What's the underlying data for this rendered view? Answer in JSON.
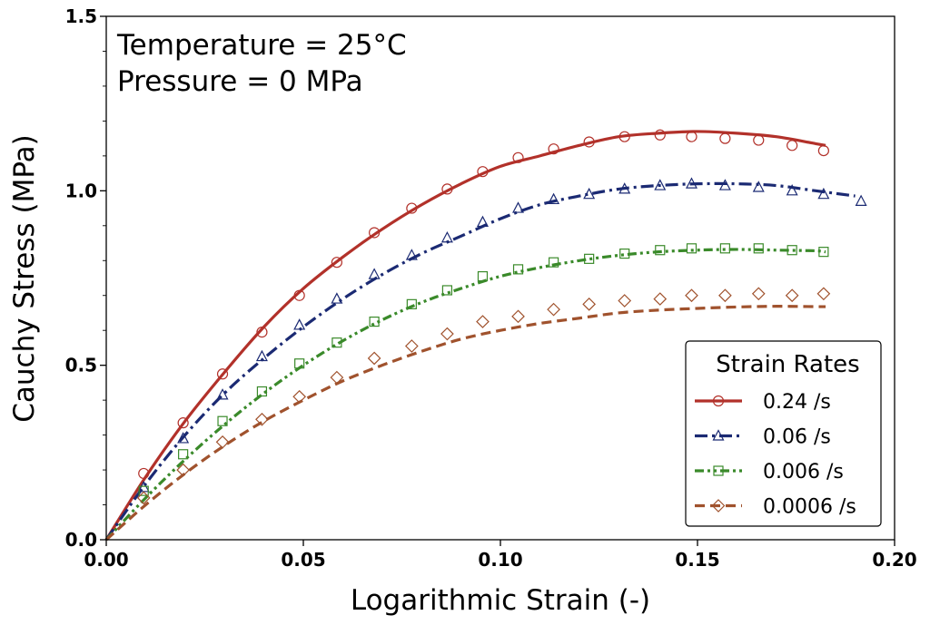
{
  "chart_data": {
    "type": "line",
    "xlabel": "Logarithmic Strain (-)",
    "ylabel": "Cauchy Stress (MPa)",
    "xlim": [
      0,
      0.2
    ],
    "ylim": [
      0,
      1.5
    ],
    "x_ticks": [
      "0.00",
      "0.05",
      "0.10",
      "0.15",
      "0.20"
    ],
    "y_ticks": [
      "0.0",
      "0.5",
      "1.0",
      "1.5"
    ],
    "grid": false,
    "annotations": [
      "Temperature = 25°C",
      "Pressure = 0 MPa"
    ],
    "legend": {
      "title": "Strain Rates",
      "position": "lower-right"
    },
    "series": [
      {
        "name": "0.24 /s",
        "color": "#b2312a",
        "line_style": "solid",
        "marker": "circle",
        "model_x": [
          0,
          0.01,
          0.02,
          0.03,
          0.04,
          0.05,
          0.06,
          0.07,
          0.08,
          0.09,
          0.1,
          0.11,
          0.12,
          0.13,
          0.14,
          0.15,
          0.16,
          0.17,
          0.18,
          0.1825
        ],
        "model_y": [
          0,
          0.18,
          0.34,
          0.48,
          0.61,
          0.72,
          0.81,
          0.89,
          0.96,
          1.02,
          1.07,
          1.1,
          1.13,
          1.155,
          1.165,
          1.17,
          1.165,
          1.155,
          1.135,
          1.13
        ],
        "data_x": [
          0.0095,
          0.0195,
          0.0295,
          0.0395,
          0.049,
          0.0585,
          0.068,
          0.0775,
          0.0865,
          0.0955,
          0.1045,
          0.1135,
          0.1225,
          0.1315,
          0.1405,
          0.1485,
          0.157,
          0.1655,
          0.174,
          0.182
        ],
        "data_y": [
          0.19,
          0.335,
          0.475,
          0.595,
          0.7,
          0.795,
          0.88,
          0.95,
          1.005,
          1.055,
          1.095,
          1.12,
          1.14,
          1.155,
          1.16,
          1.155,
          1.15,
          1.145,
          1.13,
          1.115
        ]
      },
      {
        "name": "0.06 /s",
        "color": "#1b2a73",
        "line_style": "dashdot",
        "marker": "triangle",
        "model_x": [
          0,
          0.01,
          0.02,
          0.03,
          0.04,
          0.05,
          0.06,
          0.07,
          0.08,
          0.09,
          0.1,
          0.11,
          0.12,
          0.13,
          0.14,
          0.15,
          0.16,
          0.17,
          0.18,
          0.19
        ],
        "model_y": [
          0,
          0.16,
          0.3,
          0.42,
          0.52,
          0.61,
          0.69,
          0.76,
          0.82,
          0.87,
          0.92,
          0.96,
          0.985,
          1.005,
          1.015,
          1.02,
          1.02,
          1.015,
          1.0,
          0.985
        ],
        "data_x": [
          0.0095,
          0.0195,
          0.0295,
          0.0395,
          0.049,
          0.0585,
          0.068,
          0.0775,
          0.0865,
          0.0955,
          0.1045,
          0.1135,
          0.1225,
          0.1315,
          0.1405,
          0.1485,
          0.157,
          0.1655,
          0.174,
          0.182,
          0.1915
        ],
        "data_y": [
          0.15,
          0.29,
          0.415,
          0.525,
          0.615,
          0.69,
          0.76,
          0.815,
          0.865,
          0.91,
          0.95,
          0.975,
          0.99,
          1.005,
          1.015,
          1.02,
          1.015,
          1.01,
          1.0,
          0.99,
          0.97
        ]
      },
      {
        "name": "0.006 /s",
        "color": "#3a8a2a",
        "line_style": "dashdotdot",
        "marker": "square",
        "model_x": [
          0,
          0.01,
          0.02,
          0.03,
          0.04,
          0.05,
          0.06,
          0.07,
          0.08,
          0.09,
          0.1,
          0.11,
          0.12,
          0.13,
          0.14,
          0.15,
          0.16,
          0.17,
          0.18,
          0.1825
        ],
        "model_y": [
          0,
          0.12,
          0.23,
          0.33,
          0.42,
          0.5,
          0.57,
          0.63,
          0.68,
          0.72,
          0.755,
          0.78,
          0.8,
          0.815,
          0.825,
          0.83,
          0.832,
          0.83,
          0.828,
          0.825
        ],
        "data_x": [
          0.0095,
          0.0195,
          0.0295,
          0.0395,
          0.049,
          0.0585,
          0.068,
          0.0775,
          0.0865,
          0.0955,
          0.1045,
          0.1135,
          0.1225,
          0.1315,
          0.1405,
          0.1485,
          0.157,
          0.1655,
          0.174,
          0.182
        ],
        "data_y": [
          0.14,
          0.245,
          0.34,
          0.425,
          0.505,
          0.565,
          0.625,
          0.675,
          0.715,
          0.755,
          0.775,
          0.795,
          0.805,
          0.82,
          0.83,
          0.835,
          0.835,
          0.835,
          0.83,
          0.825
        ]
      },
      {
        "name": "0.0006 /s",
        "color": "#a0522d",
        "line_style": "dashed",
        "marker": "diamond",
        "model_x": [
          0,
          0.01,
          0.02,
          0.03,
          0.04,
          0.05,
          0.06,
          0.07,
          0.08,
          0.09,
          0.1,
          0.11,
          0.12,
          0.13,
          0.14,
          0.15,
          0.16,
          0.17,
          0.18,
          0.1825
        ],
        "model_y": [
          0,
          0.1,
          0.19,
          0.27,
          0.34,
          0.4,
          0.455,
          0.5,
          0.54,
          0.575,
          0.6,
          0.62,
          0.635,
          0.65,
          0.658,
          0.663,
          0.667,
          0.669,
          0.668,
          0.668
        ],
        "data_x": [
          0.0095,
          0.0195,
          0.0295,
          0.0395,
          0.049,
          0.0585,
          0.068,
          0.0775,
          0.0865,
          0.0955,
          0.1045,
          0.1135,
          0.1225,
          0.1315,
          0.1405,
          0.1485,
          0.157,
          0.1655,
          0.174,
          0.182
        ],
        "data_y": [
          0.12,
          0.2,
          0.28,
          0.345,
          0.41,
          0.465,
          0.52,
          0.555,
          0.59,
          0.625,
          0.64,
          0.66,
          0.675,
          0.685,
          0.69,
          0.7,
          0.7,
          0.705,
          0.7,
          0.705
        ]
      }
    ]
  }
}
